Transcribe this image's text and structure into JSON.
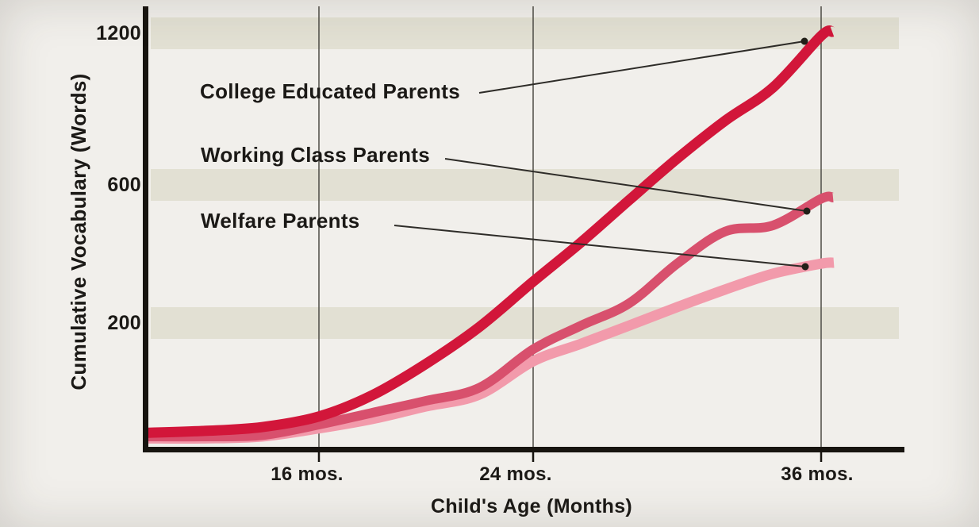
{
  "page": {
    "background": "#f1efeb"
  },
  "labels": {
    "series": [
      "College Educated Parents",
      "Working Class Parents",
      "Welfare Parents"
    ],
    "y_ticks": [
      "1200",
      "600",
      "200"
    ],
    "x_ticks": [
      "16 mos.",
      "24 mos.",
      "36 mos."
    ],
    "y_title": "Cumulative Vocabulary (Words)",
    "x_title": "Child's Age (Months)"
  },
  "colors": {
    "college": "#d2163a",
    "working": "#d8506d",
    "welfare": "#f29aab",
    "band": "#d5d4c0",
    "axis": "#17140f",
    "gridline": "#57554f",
    "leader": "#2e2c28",
    "text": "#1b1916"
  },
  "chart_data": {
    "type": "line",
    "title": "",
    "xlabel": "Child's Age (Months)",
    "ylabel": "Cumulative Vocabulary (Words)",
    "x_tick_labels": [
      "16 mos.",
      "24 mos.",
      "36 mos."
    ],
    "x_tick_values": [
      16,
      24,
      36
    ],
    "y_tick_labels": [
      "1200",
      "600",
      "200"
    ],
    "y_tick_values": [
      1200,
      600,
      200
    ],
    "xlim": [
      10,
      36
    ],
    "ylim": [
      0,
      1260
    ],
    "grid": "vertical lines at x ticks; shaded horizontal bands at y ticks",
    "legend": "inline labels with leader lines pointing to curve endpoints",
    "x": [
      10,
      12,
      14,
      16,
      18,
      20,
      22,
      24,
      26,
      28,
      30,
      32,
      34,
      36
    ],
    "series": [
      {
        "name": "College Educated Parents",
        "color": "#d2163a",
        "values": [
          25,
          28,
          34,
          51,
          85,
          135,
          194,
          320,
          434,
          556,
          704,
          854,
          986,
          1190
        ]
      },
      {
        "name": "Working Class Parents",
        "color": "#d8506d",
        "values": [
          19,
          19,
          21,
          38,
          57,
          76,
          97,
          158,
          196,
          257,
          372,
          465,
          483,
          560
        ]
      },
      {
        "name": "Welfare Parents",
        "color": "#f29aab",
        "values": [
          16,
          16,
          19,
          32,
          47,
          67,
          86,
          139,
          167,
          196,
          246,
          297,
          343,
          372
        ]
      }
    ]
  }
}
